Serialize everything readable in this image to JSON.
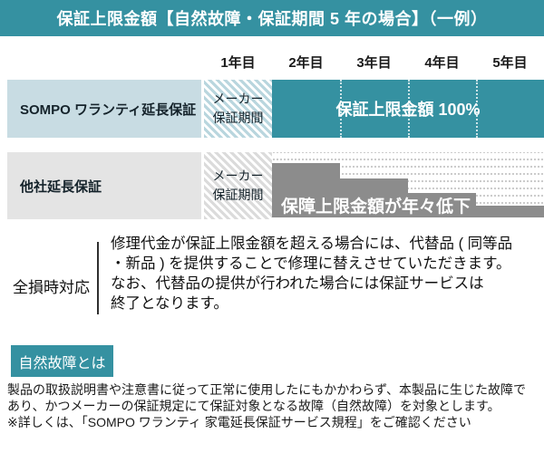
{
  "header": {
    "title": "保証上限金額【自然故障・保証期間 5 年の場合】（一例）"
  },
  "colors": {
    "teal": "#3591a1",
    "light_blue_label": "#c8dce3",
    "gray_label": "#e4e4e4",
    "dark_gray_bar": "#8c8c8c"
  },
  "timeline": {
    "years": [
      "1年目",
      "2年目",
      "3年目",
      "4年目",
      "5年目"
    ]
  },
  "rows": [
    {
      "label": "SOMPO ワランティ延長保証",
      "maker_period": "メーカー\n保証期間",
      "bar_label": "保証上限金額 100%"
    },
    {
      "label": "他社延長保証",
      "maker_period": "メーカー\n保証期間",
      "bar_label": "保障上限金額が年々低下",
      "steps_pct": [
        83,
        60,
        38,
        18
      ]
    }
  ],
  "total_loss": {
    "label": "全損時対応",
    "text": "修理代金が保証上限金額を超える場合には、代替品 ( 同等品\n・新品 ) を提供することで修理に替えさせていただきます。\nなお、代替品の提供が行われた場合には保証サービスは\n終了となります。"
  },
  "natural_failure": {
    "button_label": "自然故障とは",
    "description": "製品の取扱説明書や注意書に従って正常に使用したにもかかわらず、本製品に生じた故障で\nあり、かつメーカーの保証規定にて保証対象となる故障（自然故障）を対象とします。\n※詳しくは、「SOMPO ワランティ 家電延長保証サービス規程」をご確認ください"
  }
}
